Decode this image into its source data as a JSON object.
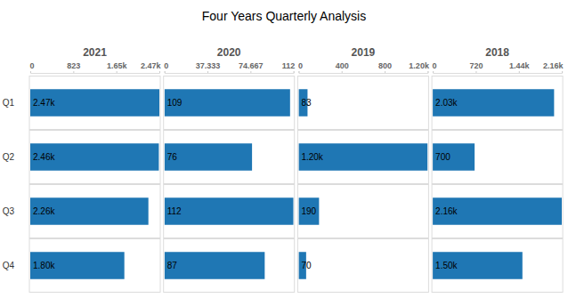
{
  "title": "Four Years Quarterly Analysis",
  "chart_data": [
    {
      "type": "bar",
      "orientation": "horizontal",
      "title": "2021",
      "color": "#1f77b4",
      "data_labels": true,
      "categories": [
        "Q1",
        "Q2",
        "Q3",
        "Q4"
      ],
      "values": [
        2470,
        2460,
        2260,
        1800
      ],
      "value_labels": [
        "2.47k",
        "2.46k",
        "2.26k",
        "1.80k"
      ],
      "xlim": [
        0,
        2470
      ],
      "xticks": [
        0,
        {
          "value": 823.333,
          "label": "823"
        },
        {
          "value": 1646.667,
          "label": "1.65k"
        },
        {
          "value": 2470,
          "label": "2.47k"
        }
      ]
    },
    {
      "type": "bar",
      "orientation": "horizontal",
      "title": "2020",
      "color": "#1f77b4",
      "data_labels": true,
      "tick_labels": "x",
      "categories": [
        "Q1",
        "Q2",
        "Q3",
        "Q4"
      ],
      "values": [
        109,
        76,
        112,
        87
      ],
      "xlim": [
        0,
        112
      ],
      "xticks": [
        0,
        37.333,
        74.667,
        112
      ]
    },
    {
      "type": "bar",
      "orientation": "horizontal",
      "title": "2019",
      "color": "#1f77b4",
      "data_labels": true,
      "tick_labels": "x",
      "categories": [
        "Q1",
        "Q2",
        "Q3",
        "Q4"
      ],
      "values": [
        83,
        1200,
        190,
        70
      ],
      "value_labels": [
        "83",
        "1.20k",
        "190",
        "70"
      ],
      "xlim": [
        0,
        1200
      ],
      "xticks": [
        0,
        400,
        800,
        {
          "value": 1200,
          "label": "1.20k"
        }
      ]
    },
    {
      "type": "bar",
      "orientation": "horizontal",
      "title": "2018",
      "color": "#1f77b4",
      "data_labels": true,
      "tick_labels": "x",
      "categories": [
        "Q1",
        "Q2",
        "Q3",
        "Q4"
      ],
      "values": [
        2030,
        700,
        2160,
        1500
      ],
      "value_labels": [
        "2.03k",
        "700",
        "2.16k",
        "1.50k"
      ],
      "xlim": [
        0,
        2160
      ],
      "xticks": [
        0,
        720,
        {
          "value": 1440,
          "label": "1.44k"
        },
        {
          "value": 2160,
          "label": "2.16k"
        }
      ]
    }
  ]
}
